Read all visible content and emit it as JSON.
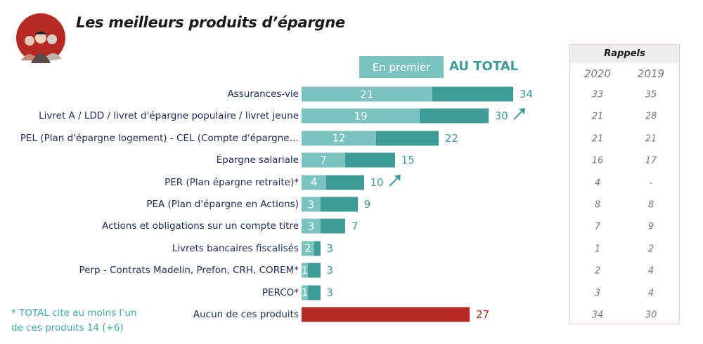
{
  "title": "Les meilleurs produits d’épargne",
  "legend": {
    "first": "En premier",
    "total": "AU TOTAL"
  },
  "colors": {
    "first": "#7ac3c1",
    "total": "#3f9b98",
    "none": "#b52a22",
    "label": "#1f2a55"
  },
  "footnote": [
    "* TOTAL cite au moins l’un",
    "de ces produits 14 (+6)"
  ],
  "chart_data": {
    "type": "bar",
    "orientation": "horizontal",
    "stacked_overlay": true,
    "categories": [
      "Assurances-vie",
      "Livret A / LDD / livret d'épargne populaire / livret jeune",
      "PEL (Plan d'épargne logement) - CEL (Compte d'épargne…",
      "Épargne salariale",
      "PER (Plan épargne retraite)*",
      "PEA (Plan d'épargne en Actions)",
      "Actions et obligations sur un compte titre",
      "Livrets bancaires fiscalisés",
      "Perp - Contrats Madelin, Prefon, CRH, COREM*",
      "PERCO*",
      "Aucun de ces produits"
    ],
    "series": [
      {
        "name": "En premier",
        "values": [
          21,
          19,
          12,
          7,
          4,
          3,
          3,
          2,
          1,
          1,
          null
        ]
      },
      {
        "name": "AU TOTAL",
        "values": [
          34,
          30,
          22,
          15,
          10,
          9,
          7,
          3,
          3,
          3,
          27
        ]
      }
    ],
    "trend_up": [
      false,
      true,
      false,
      false,
      true,
      false,
      false,
      false,
      false,
      false,
      false
    ],
    "rappels": {
      "title": "Rappels",
      "years": [
        "2020",
        "2019"
      ],
      "values": [
        [
          "33",
          "35"
        ],
        [
          "21",
          "28"
        ],
        [
          "21",
          "21"
        ],
        [
          "16",
          "17"
        ],
        [
          "4",
          "-"
        ],
        [
          "8",
          "8"
        ],
        [
          "7",
          "9"
        ],
        [
          "1",
          "2"
        ],
        [
          "2",
          "4"
        ],
        [
          "3",
          "4"
        ],
        [
          "34",
          "30"
        ]
      ]
    }
  }
}
